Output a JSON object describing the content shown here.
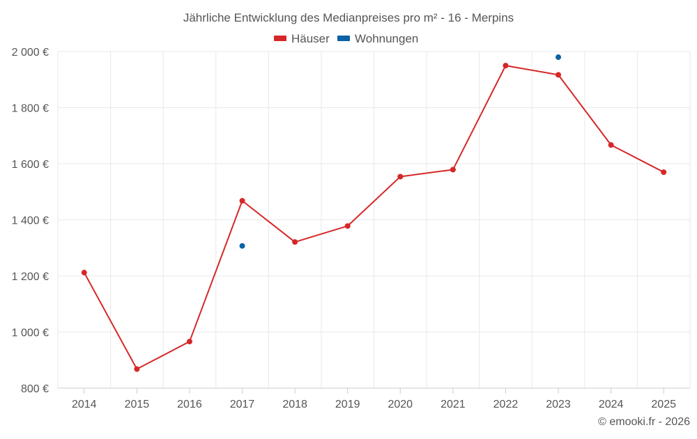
{
  "chart_data": {
    "type": "line",
    "title": "Jährliche Entwicklung des Medianpreises pro m² - 16 - Merpins",
    "categories": [
      "2014",
      "2015",
      "2016",
      "2017",
      "2018",
      "2019",
      "2020",
      "2021",
      "2022",
      "2023",
      "2024",
      "2025"
    ],
    "y_ticks": [
      "800 €",
      "1 000 €",
      "1 200 €",
      "1 400 €",
      "1 600 €",
      "1 800 €",
      "2 000 €"
    ],
    "y_tick_values": [
      800,
      1000,
      1200,
      1400,
      1600,
      1800,
      2000
    ],
    "ylim": [
      800,
      2000
    ],
    "xlabel": "",
    "ylabel": "",
    "grid": true,
    "legend_position": "top-center",
    "series": [
      {
        "name": "Häuser",
        "color": "#d62728",
        "values": [
          1212,
          868,
          966,
          1468,
          1321,
          1378,
          1554,
          1579,
          1950,
          1917,
          1667,
          1570
        ]
      },
      {
        "name": "Wohnungen",
        "color": "#0b62a4",
        "values": [
          null,
          null,
          null,
          1307,
          null,
          null,
          null,
          null,
          null,
          1980,
          null,
          null
        ]
      }
    ],
    "credit": "© emooki.fr - 2026"
  }
}
